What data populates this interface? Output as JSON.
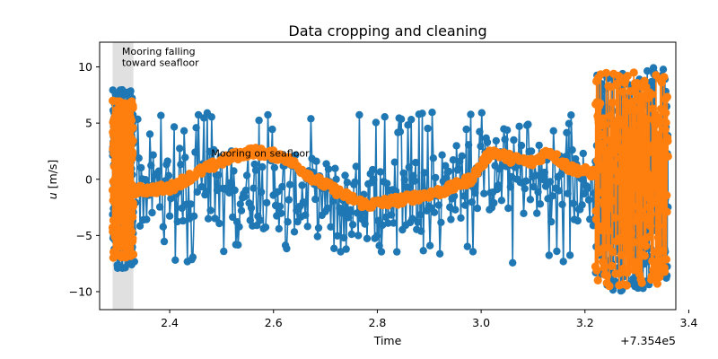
{
  "chart_data": {
    "type": "line",
    "title": "Data cropping and cleaning",
    "xlabel": "Time",
    "ylabel": "u [m/s]",
    "x_offset_label": "+7.354e5",
    "xlim": [
      2.265,
      3.375
    ],
    "ylim": [
      -11.6,
      12.2
    ],
    "xticks": [
      2.4,
      2.6,
      2.8,
      3.0,
      3.2,
      3.4
    ],
    "xtick_labels": [
      "2.4",
      "2.6",
      "2.8",
      "3.0",
      "3.2",
      "3.4"
    ],
    "yticks": [
      -10,
      -5,
      0,
      5,
      10
    ],
    "ytick_labels": [
      "−10",
      "−5",
      "0",
      "5",
      "10"
    ],
    "grid": false,
    "shaded_region": {
      "x": [
        2.29,
        2.33
      ],
      "color": "#e0e0e0"
    },
    "annotations": [
      {
        "text": "Mooring falling",
        "x": 2.308,
        "y": 11.1
      },
      {
        "text": "toward seafloor",
        "x": 2.308,
        "y": 10.1
      },
      {
        "text": "Mooring on seafloor",
        "x": 2.48,
        "y": 2.0
      }
    ],
    "series": [
      {
        "color": "#1f77b4",
        "marker": "o",
        "segments": [
          {
            "x_range": [
              2.29,
              2.33
            ],
            "center": 0.0,
            "amplitude": 8.0,
            "period": 0.0
          },
          {
            "x_range": [
              2.33,
              3.22
            ],
            "center_profile": [
              [
                2.33,
                -1.0
              ],
              [
                2.45,
                -0.5
              ],
              [
                2.6,
                -1.0
              ],
              [
                2.75,
                -2.2
              ],
              [
                2.9,
                -1.0
              ],
              [
                3.0,
                0.5
              ],
              [
                3.1,
                0.0
              ],
              [
                3.22,
                -1.0
              ]
            ],
            "amplitude": 3.5,
            "spike_range": [
              -7.5,
              6.0
            ]
          },
          {
            "x_range": [
              3.22,
              3.36
            ],
            "center": 0.0,
            "amplitude": 10.0
          }
        ]
      },
      {
        "color": "#ff7f0e",
        "marker": "o",
        "segments": [
          {
            "x_range": [
              2.29,
              2.33
            ],
            "center": 0.0,
            "amplitude": 7.0
          },
          {
            "x_range": [
              2.33,
              3.22
            ],
            "center_profile": [
              [
                2.33,
                -1.0
              ],
              [
                2.4,
                -0.8
              ],
              [
                2.45,
                0.5
              ],
              [
                2.52,
                2.0
              ],
              [
                2.56,
                2.5
              ],
              [
                2.62,
                2.0
              ],
              [
                2.68,
                0.0
              ],
              [
                2.74,
                -1.5
              ],
              [
                2.78,
                -2.3
              ],
              [
                2.85,
                -1.8
              ],
              [
                2.93,
                -1.0
              ],
              [
                2.98,
                0.0
              ],
              [
                3.02,
                2.5
              ],
              [
                3.06,
                1.8
              ],
              [
                3.1,
                1.5
              ],
              [
                3.13,
                2.5
              ],
              [
                3.17,
                1.0
              ],
              [
                3.22,
                0.5
              ]
            ],
            "amplitude": 0.4
          },
          {
            "x_range": [
              3.22,
              3.36
            ],
            "center": 0.0,
            "amplitude": 9.5
          }
        ]
      }
    ]
  }
}
